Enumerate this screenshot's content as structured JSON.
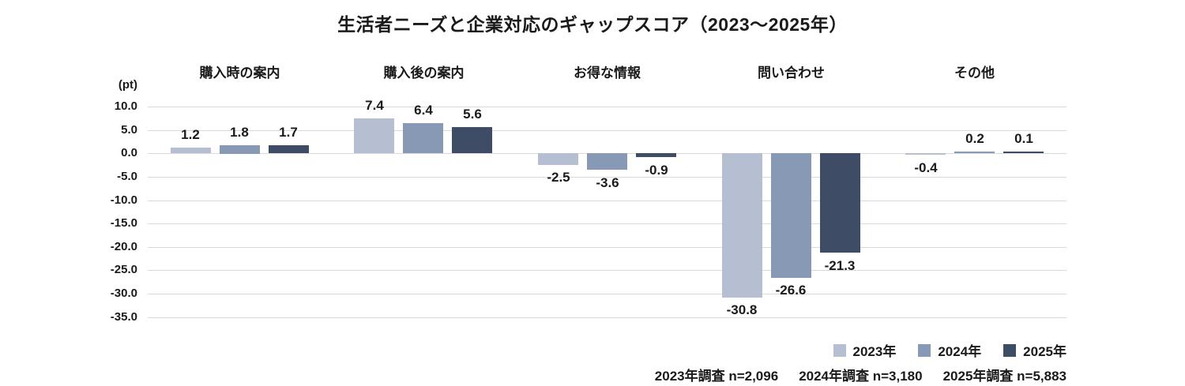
{
  "chart_data": {
    "type": "bar",
    "title": "生活者ニーズと企業対応のギャップスコア（2023～2025年）",
    "unit_label": "(pt)",
    "categories": [
      "購入時の案内",
      "購入後の案内",
      "お得な情報",
      "問い合わせ",
      "その他"
    ],
    "series": [
      {
        "name": "2023年",
        "color": "#b5bfd1",
        "values": [
          1.2,
          7.4,
          -2.5,
          -30.8,
          -0.4
        ]
      },
      {
        "name": "2024年",
        "color": "#8799b4",
        "values": [
          1.8,
          6.4,
          -3.6,
          -26.6,
          0.2
        ]
      },
      {
        "name": "2025年",
        "color": "#3e4d65",
        "values": [
          1.7,
          5.6,
          -0.9,
          -21.3,
          0.1
        ]
      }
    ],
    "y_ticks": [
      10.0,
      5.0,
      0.0,
      -5.0,
      -10.0,
      -15.0,
      -20.0,
      -25.0,
      -30.0,
      -35.0
    ],
    "ylim": [
      -35,
      10
    ],
    "grid": true,
    "legend_position": "bottom-right",
    "gridline_color": "#d9d9d9",
    "text_color": "#1a1a1a",
    "footnote_items": [
      "2023年調査 n=2,096",
      "2024年調査 n=3,180",
      "2025年調査 n=5,883"
    ]
  }
}
